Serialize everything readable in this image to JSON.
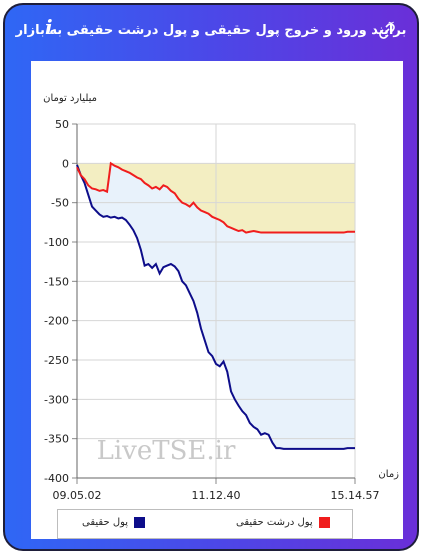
{
  "title": "برآیند ورود و خروج پول حقیقی و پول درشت حقیقی به بازار",
  "icons": {
    "link": "link-icon",
    "info": "info-icon"
  },
  "colors": {
    "real": "#0d0d8a",
    "big": "#f01d1d",
    "fill_real": "#e8f2fb",
    "fill_big": "#f3eec2"
  },
  "chart_data": {
    "type": "line",
    "ylabel": "میلیارد تومان",
    "xlabel": "زمان",
    "ylim": [
      -400,
      50
    ],
    "yticks": [
      "50",
      "0",
      "-50",
      "-100",
      "-150",
      "-200",
      "-250",
      "-300",
      "-350",
      "-400"
    ],
    "xticks": [
      "09.05.02",
      "11.12.40",
      "15.14.57"
    ],
    "watermark": "LiveTSE.ir",
    "legend_position": "bottom",
    "series": [
      {
        "name": "پول حقیقی",
        "color": "#0d0d8a",
        "values": [
          -2,
          -15,
          -25,
          -40,
          -55,
          -60,
          -65,
          -68,
          -67,
          -69,
          -68,
          -70,
          -69,
          -72,
          -78,
          -85,
          -95,
          -110,
          -130,
          -128,
          -133,
          -128,
          -140,
          -132,
          -130,
          -128,
          -131,
          -137,
          -150,
          -155,
          -165,
          -175,
          -190,
          -210,
          -225,
          -240,
          -245,
          -255,
          -258,
          -252,
          -265,
          -290,
          -300,
          -308,
          -315,
          -320,
          -330,
          -335,
          -338,
          -345,
          -343,
          -345,
          -355,
          -362,
          -362,
          -363,
          -363,
          -363,
          -363,
          -363,
          -363,
          -363,
          -363,
          -363,
          -363,
          -363,
          -363,
          -363,
          -363,
          -363,
          -363,
          -363,
          -362,
          -362,
          -362
        ]
      },
      {
        "name": "پول درشت حقیقی",
        "color": "#f01d1d",
        "values": [
          -5,
          -15,
          -20,
          -28,
          -32,
          -33,
          -35,
          -34,
          -36,
          0,
          -3,
          -5,
          -8,
          -10,
          -12,
          -15,
          -18,
          -20,
          -25,
          -28,
          -32,
          -30,
          -33,
          -28,
          -30,
          -35,
          -38,
          -45,
          -50,
          -52,
          -55,
          -50,
          -56,
          -60,
          -62,
          -64,
          -68,
          -70,
          -72,
          -75,
          -80,
          -82,
          -84,
          -86,
          -85,
          -88,
          -87,
          -86,
          -87,
          -88,
          -88,
          -88,
          -88,
          -88,
          -88,
          -88,
          -88,
          -88,
          -88,
          -88,
          -88,
          -88,
          -88,
          -88,
          -88,
          -88,
          -88,
          -88,
          -88,
          -88,
          -88,
          -88,
          -87,
          -87,
          -87
        ]
      }
    ]
  }
}
